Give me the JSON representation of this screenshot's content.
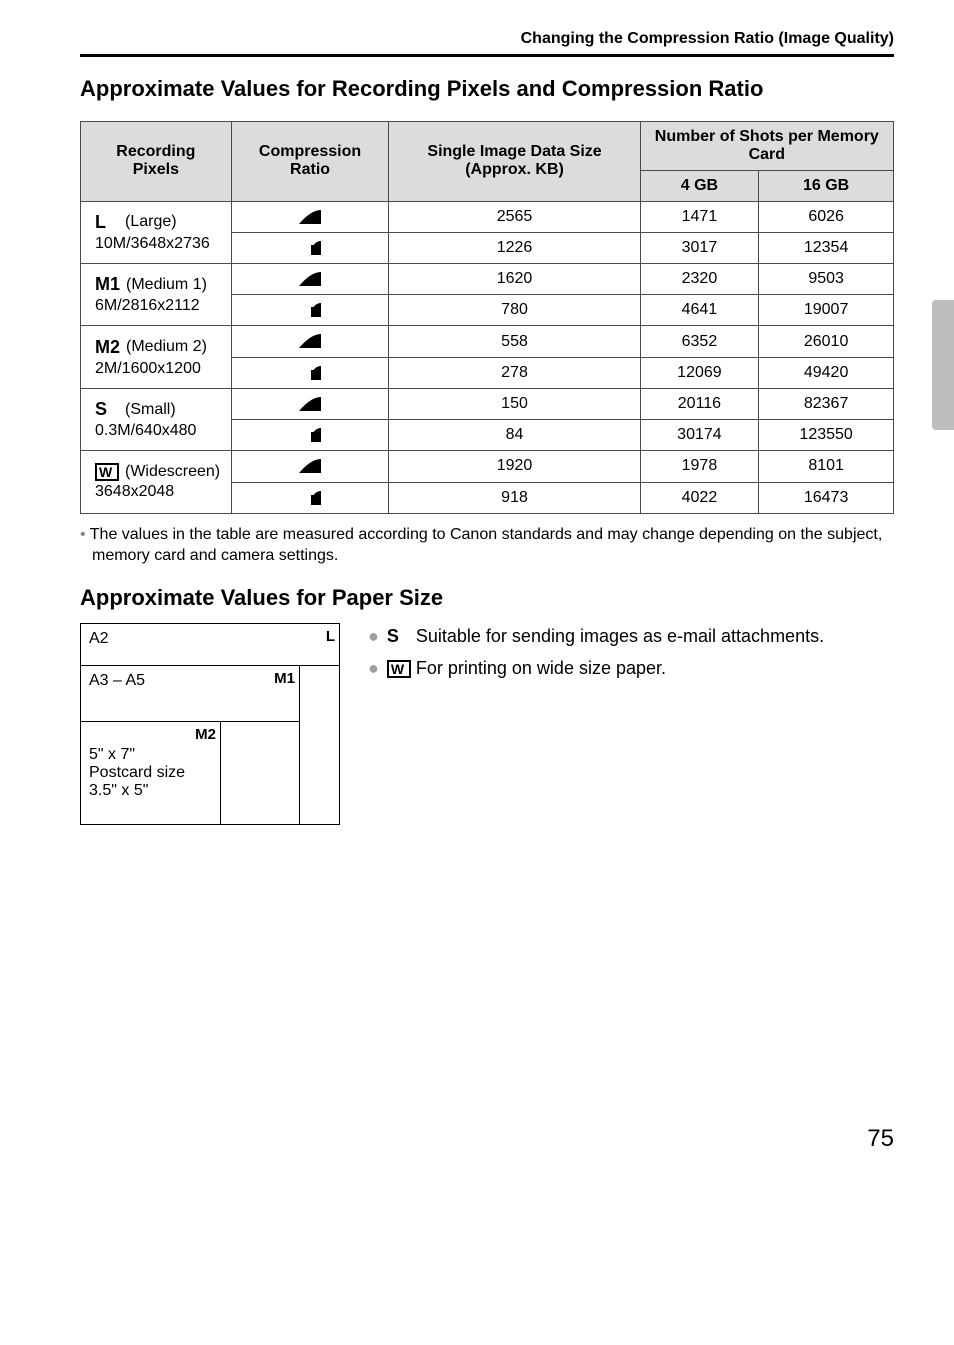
{
  "crumb": "Changing the Compression Ratio (Image Quality)",
  "section1_title": "Approximate Values for Recording Pixels and Compression Ratio",
  "table": {
    "headers": {
      "rec_pixels": "Recording Pixels",
      "comp_ratio": "Compression Ratio",
      "single_img": "Single Image Data Size (Approx. KB)",
      "shots": "Number of Shots per Memory Card",
      "g4": "4 GB",
      "g16": "16 GB"
    },
    "rows": [
      {
        "glyph": "L",
        "label": "(Large)",
        "sub": "10M/3648x2736",
        "r": [
          {
            "kb": "2565",
            "g4": "1471",
            "g16": "6026"
          },
          {
            "kb": "1226",
            "g4": "3017",
            "g16": "12354"
          }
        ]
      },
      {
        "glyph": "M1",
        "label": "(Medium 1)",
        "sub": "6M/2816x2112",
        "r": [
          {
            "kb": "1620",
            "g4": "2320",
            "g16": "9503"
          },
          {
            "kb": "780",
            "g4": "4641",
            "g16": "19007"
          }
        ]
      },
      {
        "glyph": "M2",
        "label": "(Medium 2)",
        "sub": "2M/1600x1200",
        "r": [
          {
            "kb": "558",
            "g4": "6352",
            "g16": "26010"
          },
          {
            "kb": "278",
            "g4": "12069",
            "g16": "49420"
          }
        ]
      },
      {
        "glyph": "S",
        "label": "(Small)",
        "sub": "0.3M/640x480",
        "r": [
          {
            "kb": "150",
            "g4": "20116",
            "g16": "82367"
          },
          {
            "kb": "84",
            "g4": "30174",
            "g16": "123550"
          }
        ]
      },
      {
        "glyph": "W",
        "label": "(Widescreen)",
        "sub": "3648x2048",
        "r": [
          {
            "kb": "1920",
            "g4": "1978",
            "g16": "8101"
          },
          {
            "kb": "918",
            "g4": "4022",
            "g16": "16473"
          }
        ]
      }
    ]
  },
  "footnote": "The values in the table are measured according to Canon standards and may change depending on the subject, memory card and camera settings.",
  "section2_title": "Approximate Values for Paper Size",
  "paper": {
    "a2": "A2",
    "a3a5": "A3 – A5",
    "small": "5\" x 7\"\nPostcard size\n3.5\" x 5\"",
    "tag_L": "L",
    "tag_M1": "M1",
    "tag_M2": "M2"
  },
  "bullets": {
    "b1_pre": "",
    "b1_glyph": "S",
    "b1_text": " Suitable for sending images as e-mail attachments.",
    "b2_glyph": "W",
    "b2_text": " For printing on wide size paper."
  },
  "page_number": "75",
  "colors": {
    "header_bg": "#dcdcdc",
    "border": "#4a4a4a",
    "bullet_grey": "#9e9e9e",
    "side_tab": "#bdbdbd"
  }
}
